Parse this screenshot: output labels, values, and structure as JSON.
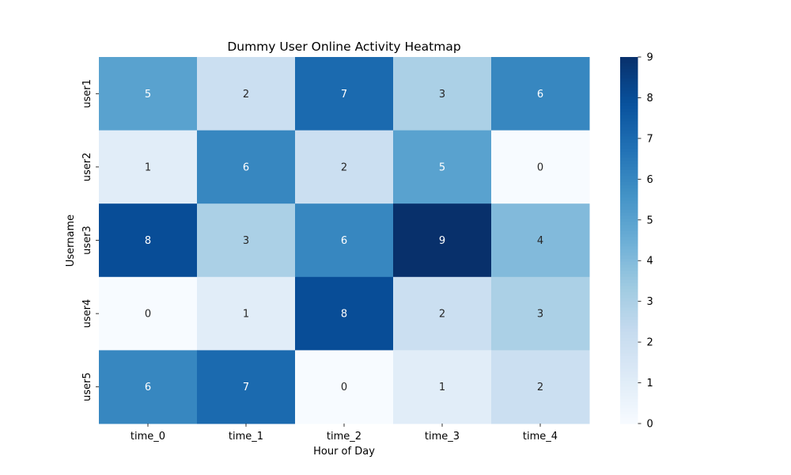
{
  "chart_data": {
    "type": "heatmap",
    "title": "Dummy User Online Activity Heatmap",
    "xlabel": "Hour of Day",
    "ylabel": "Username",
    "x_categories": [
      "time_0",
      "time_1",
      "time_2",
      "time_3",
      "time_4"
    ],
    "y_categories": [
      "user1",
      "user2",
      "user3",
      "user4",
      "user5"
    ],
    "values": [
      [
        5,
        2,
        7,
        3,
        6
      ],
      [
        1,
        6,
        2,
        5,
        0
      ],
      [
        8,
        3,
        6,
        9,
        4
      ],
      [
        0,
        1,
        8,
        2,
        3
      ],
      [
        6,
        7,
        0,
        1,
        2
      ]
    ],
    "colormap": "Blues",
    "vmin": 0,
    "vmax": 9,
    "annotations": true,
    "colorbar_ticks": [
      0,
      1,
      2,
      3,
      4,
      5,
      6,
      7,
      8,
      9
    ],
    "colors": {
      "low": "#f7fbff",
      "high": "#08306b",
      "annotation_dark": "#262626",
      "annotation_light": "#ffffff"
    }
  }
}
